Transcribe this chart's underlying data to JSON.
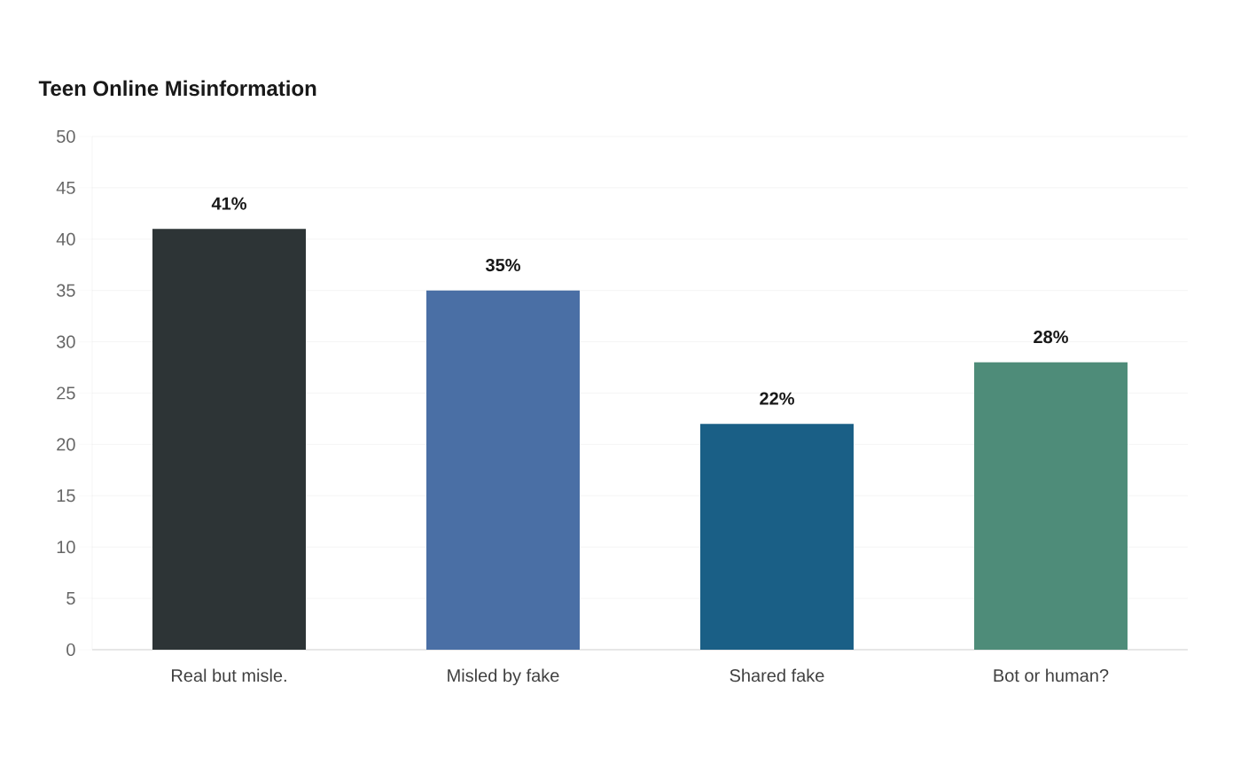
{
  "chart_data": {
    "type": "bar",
    "title": "Teen Online Misinformation",
    "categories": [
      "Real but misle.",
      "Misled by fake",
      "Shared fake",
      "Bot or human?"
    ],
    "values": [
      41,
      35,
      22,
      28
    ],
    "colors": [
      "#2d3436",
      "#4a6fa5",
      "#1a5f86",
      "#4e8c79"
    ],
    "value_labels": [
      "41%",
      "35%",
      "22%",
      "28%"
    ],
    "ylim": [
      0,
      50
    ],
    "yticks": [
      0,
      5,
      10,
      15,
      20,
      25,
      30,
      35,
      40,
      45,
      50
    ],
    "grid": "y"
  }
}
